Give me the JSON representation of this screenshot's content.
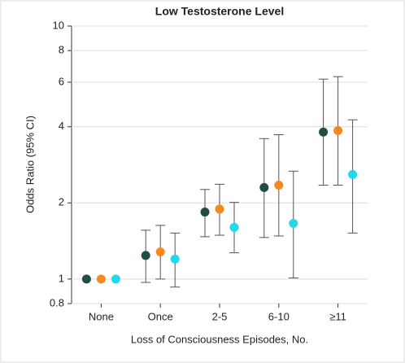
{
  "chart_data": {
    "type": "dot-errorbar",
    "title": "Low Testosterone Level",
    "x_label": "Loss of Consciousness Episodes, No.",
    "y_label": "Odds Ratio (95% CI)",
    "categories": [
      "None",
      "Once",
      "2-5",
      "6-10",
      "≥11"
    ],
    "log_scale": true,
    "grid": true,
    "ylim": [
      0.8,
      10
    ],
    "yticks": [
      0.8,
      1,
      2,
      4,
      6,
      8,
      10
    ],
    "series": [
      {
        "color": "#1f4e46",
        "values": [
          1,
          1.24,
          1.84,
          2.3,
          3.81
        ],
        "lower": [
          null,
          0.97,
          1.47,
          1.46,
          2.35
        ],
        "upper": [
          null,
          1.56,
          2.26,
          3.59,
          6.17
        ]
      },
      {
        "color": "#f5891f",
        "values": [
          1,
          1.28,
          1.89,
          2.35,
          3.86
        ],
        "lower": [
          null,
          1.0,
          1.49,
          1.48,
          2.35
        ],
        "upper": [
          null,
          1.63,
          2.37,
          3.72,
          6.31
        ]
      },
      {
        "color": "#22d9ec",
        "values": [
          1,
          1.2,
          1.6,
          1.66,
          2.59
        ],
        "lower": [
          null,
          0.93,
          1.27,
          1.01,
          1.52
        ],
        "upper": [
          null,
          1.52,
          2.01,
          2.67,
          4.26
        ]
      }
    ]
  }
}
